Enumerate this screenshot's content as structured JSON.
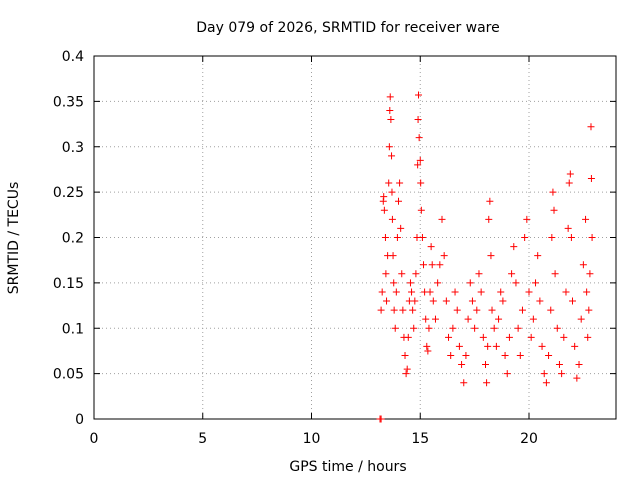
{
  "chart_data": {
    "type": "scatter",
    "title": "Day 079 of 2026, SRMTID for receiver ware",
    "xlabel": "GPS time / hours",
    "ylabel": "SRMTID / TECUs",
    "xlim": [
      0,
      24
    ],
    "ylim": [
      0,
      0.4
    ],
    "xticks": [
      0,
      5,
      10,
      15,
      20
    ],
    "xtick_labels": [
      "0",
      "5",
      "10",
      "15",
      "20"
    ],
    "yticks": [
      0,
      0.05,
      0.1,
      0.15,
      0.2,
      0.25,
      0.3,
      0.35,
      0.4
    ],
    "ytick_labels": [
      "0",
      "0.05",
      "0.1",
      "0.15",
      "0.2",
      "0.25",
      "0.3",
      "0.35",
      "0.4"
    ],
    "grid": true,
    "marker": "plus",
    "colors": {
      "series": "#ff0000",
      "grid": "#a0a0a0",
      "axis": "#000000"
    },
    "series": [
      {
        "name": "SRMTID",
        "points": [
          [
            13.15,
            0.0
          ],
          [
            13.2,
            0.0
          ],
          [
            13.2,
            0.12
          ],
          [
            13.25,
            0.14
          ],
          [
            13.3,
            0.24
          ],
          [
            13.32,
            0.245
          ],
          [
            13.35,
            0.23
          ],
          [
            13.4,
            0.2
          ],
          [
            13.42,
            0.16
          ],
          [
            13.45,
            0.13
          ],
          [
            13.5,
            0.18
          ],
          [
            13.55,
            0.26
          ],
          [
            13.58,
            0.3
          ],
          [
            13.6,
            0.34
          ],
          [
            13.62,
            0.355
          ],
          [
            13.65,
            0.33
          ],
          [
            13.68,
            0.29
          ],
          [
            13.7,
            0.25
          ],
          [
            13.72,
            0.22
          ],
          [
            13.75,
            0.18
          ],
          [
            13.78,
            0.15
          ],
          [
            13.8,
            0.12
          ],
          [
            13.85,
            0.1
          ],
          [
            13.9,
            0.14
          ],
          [
            13.95,
            0.2
          ],
          [
            14.0,
            0.24
          ],
          [
            14.05,
            0.26
          ],
          [
            14.1,
            0.21
          ],
          [
            14.15,
            0.16
          ],
          [
            14.2,
            0.12
          ],
          [
            14.25,
            0.09
          ],
          [
            14.3,
            0.07
          ],
          [
            14.35,
            0.05
          ],
          [
            14.4,
            0.055
          ],
          [
            14.45,
            0.09
          ],
          [
            14.5,
            0.13
          ],
          [
            14.55,
            0.15
          ],
          [
            14.6,
            0.14
          ],
          [
            14.65,
            0.12
          ],
          [
            14.7,
            0.1
          ],
          [
            14.75,
            0.13
          ],
          [
            14.8,
            0.16
          ],
          [
            14.85,
            0.2
          ],
          [
            14.88,
            0.28
          ],
          [
            14.9,
            0.33
          ],
          [
            14.92,
            0.357
          ],
          [
            14.95,
            0.31
          ],
          [
            15.0,
            0.285
          ],
          [
            15.02,
            0.26
          ],
          [
            15.05,
            0.23
          ],
          [
            15.1,
            0.2
          ],
          [
            15.15,
            0.17
          ],
          [
            15.2,
            0.14
          ],
          [
            15.25,
            0.11
          ],
          [
            15.3,
            0.08
          ],
          [
            15.35,
            0.075
          ],
          [
            15.4,
            0.1
          ],
          [
            15.45,
            0.14
          ],
          [
            15.5,
            0.19
          ],
          [
            15.55,
            0.17
          ],
          [
            15.6,
            0.13
          ],
          [
            15.7,
            0.11
          ],
          [
            15.8,
            0.15
          ],
          [
            15.9,
            0.17
          ],
          [
            16.0,
            0.22
          ],
          [
            16.1,
            0.18
          ],
          [
            16.2,
            0.13
          ],
          [
            16.3,
            0.09
          ],
          [
            16.4,
            0.07
          ],
          [
            16.5,
            0.1
          ],
          [
            16.6,
            0.14
          ],
          [
            16.7,
            0.12
          ],
          [
            16.8,
            0.08
          ],
          [
            16.9,
            0.06
          ],
          [
            17.0,
            0.04
          ],
          [
            17.1,
            0.07
          ],
          [
            17.2,
            0.11
          ],
          [
            17.3,
            0.15
          ],
          [
            17.4,
            0.13
          ],
          [
            17.5,
            0.1
          ],
          [
            17.6,
            0.12
          ],
          [
            17.7,
            0.16
          ],
          [
            17.8,
            0.14
          ],
          [
            17.9,
            0.09
          ],
          [
            18.0,
            0.06
          ],
          [
            18.05,
            0.04
          ],
          [
            18.1,
            0.08
          ],
          [
            18.15,
            0.22
          ],
          [
            18.2,
            0.24
          ],
          [
            18.25,
            0.18
          ],
          [
            18.3,
            0.12
          ],
          [
            18.4,
            0.1
          ],
          [
            18.5,
            0.08
          ],
          [
            18.6,
            0.11
          ],
          [
            18.7,
            0.14
          ],
          [
            18.8,
            0.13
          ],
          [
            18.9,
            0.07
          ],
          [
            19.0,
            0.05
          ],
          [
            19.1,
            0.09
          ],
          [
            19.2,
            0.16
          ],
          [
            19.3,
            0.19
          ],
          [
            19.4,
            0.15
          ],
          [
            19.5,
            0.1
          ],
          [
            19.6,
            0.07
          ],
          [
            19.7,
            0.12
          ],
          [
            19.8,
            0.2
          ],
          [
            19.9,
            0.22
          ],
          [
            20.0,
            0.14
          ],
          [
            20.1,
            0.09
          ],
          [
            20.2,
            0.11
          ],
          [
            20.3,
            0.15
          ],
          [
            20.4,
            0.18
          ],
          [
            20.5,
            0.13
          ],
          [
            20.6,
            0.08
          ],
          [
            20.7,
            0.05
          ],
          [
            20.8,
            0.04
          ],
          [
            20.9,
            0.07
          ],
          [
            21.0,
            0.12
          ],
          [
            21.05,
            0.2
          ],
          [
            21.1,
            0.25
          ],
          [
            21.15,
            0.23
          ],
          [
            21.2,
            0.16
          ],
          [
            21.3,
            0.1
          ],
          [
            21.4,
            0.06
          ],
          [
            21.5,
            0.05
          ],
          [
            21.6,
            0.09
          ],
          [
            21.7,
            0.14
          ],
          [
            21.8,
            0.21
          ],
          [
            21.85,
            0.26
          ],
          [
            21.9,
            0.27
          ],
          [
            21.95,
            0.2
          ],
          [
            22.0,
            0.13
          ],
          [
            22.1,
            0.08
          ],
          [
            22.2,
            0.045
          ],
          [
            22.3,
            0.06
          ],
          [
            22.4,
            0.11
          ],
          [
            22.5,
            0.17
          ],
          [
            22.6,
            0.22
          ],
          [
            22.65,
            0.14
          ],
          [
            22.7,
            0.09
          ],
          [
            22.75,
            0.12
          ],
          [
            22.8,
            0.16
          ],
          [
            22.85,
            0.322
          ],
          [
            22.87,
            0.265
          ],
          [
            22.9,
            0.2
          ]
        ]
      }
    ]
  }
}
